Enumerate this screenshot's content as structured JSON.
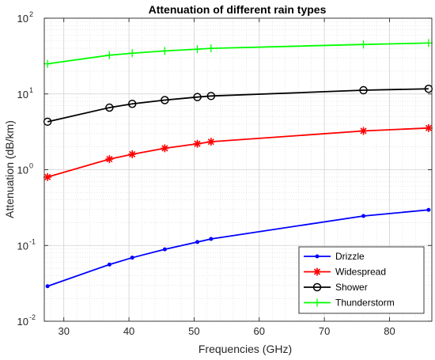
{
  "chart_data": {
    "type": "line",
    "title": "Attenuation of different rain types",
    "xlabel": "Frequencies (GHz)",
    "ylabel": "Attenuation (dB/km)",
    "xlim": [
      27,
      86.5
    ],
    "ylim": [
      0.01,
      100
    ],
    "yscale": "log",
    "grid": true,
    "minor_grid": true,
    "legend_position": "bottom-right",
    "x_ticks": [
      30,
      40,
      50,
      60,
      70,
      80
    ],
    "x_tick_labels": [
      "30",
      "40",
      "50",
      "60",
      "70",
      "80"
    ],
    "y_ticks": [
      0.01,
      0.1,
      1,
      10,
      100
    ],
    "y_tick_labels": [
      {
        "base": "10",
        "exp": "-2"
      },
      {
        "base": "10",
        "exp": "-1"
      },
      {
        "base": "10",
        "exp": "0"
      },
      {
        "base": "10",
        "exp": "1"
      },
      {
        "base": "10",
        "exp": "2"
      }
    ],
    "x": [
      27.5,
      37,
      40.5,
      45.5,
      50.5,
      52.6,
      76,
      86
    ],
    "series": [
      {
        "name": "Drizzle",
        "color": "#0000ff",
        "marker": "dot",
        "values": [
          0.029,
          0.056,
          0.069,
          0.089,
          0.111,
          0.122,
          0.245,
          0.295
        ]
      },
      {
        "name": "Widespread",
        "color": "#ff0000",
        "marker": "star",
        "values": [
          0.8,
          1.38,
          1.6,
          1.92,
          2.2,
          2.34,
          3.25,
          3.55
        ]
      },
      {
        "name": "Shower",
        "color": "#000000",
        "marker": "circle",
        "values": [
          4.3,
          6.6,
          7.4,
          8.3,
          9.1,
          9.4,
          11.2,
          11.7
        ]
      },
      {
        "name": "Thunderstorm",
        "color": "#00ff00",
        "marker": "plus",
        "values": [
          25,
          32.5,
          34.5,
          37,
          39,
          40,
          45,
          47
        ]
      }
    ]
  }
}
